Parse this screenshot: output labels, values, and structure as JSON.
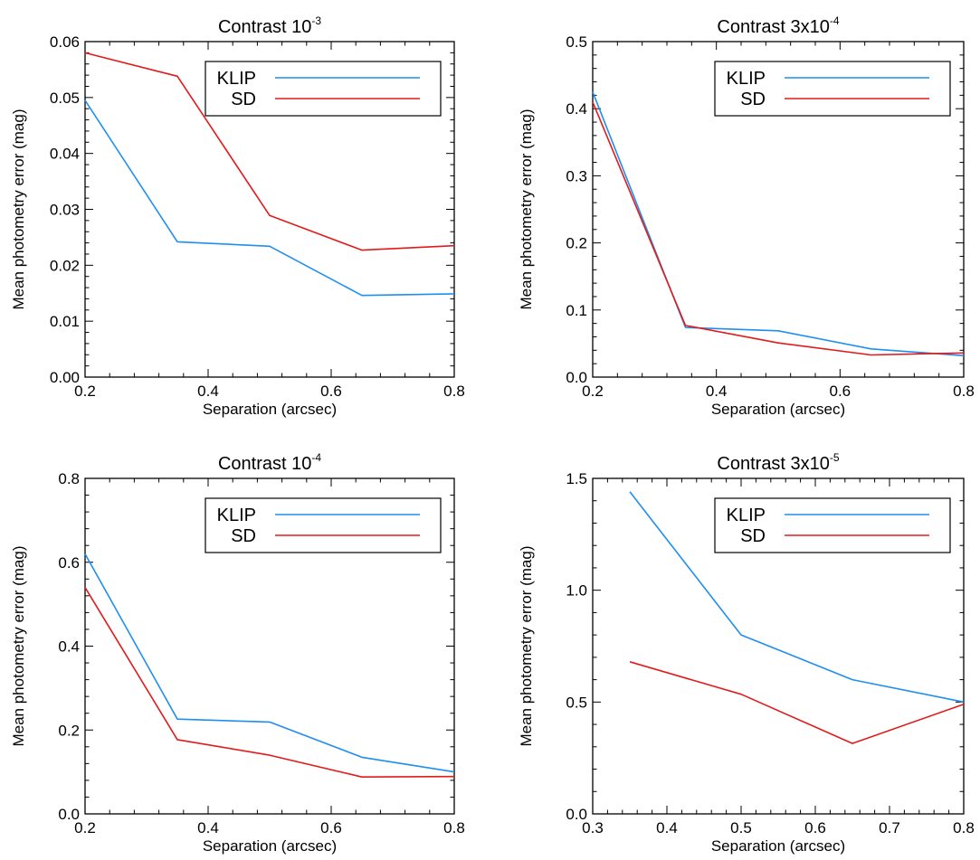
{
  "chart_data": [
    {
      "type": "line",
      "title": {
        "base": "Contrast 10",
        "exp": "-3"
      },
      "xlabel": "Separation (arcsec)",
      "ylabel": "Mean photometry error (mag)",
      "xlim": [
        0.2,
        0.8
      ],
      "ylim": [
        0.0,
        0.06
      ],
      "xticks": [
        "0.2",
        "0.4",
        "0.6",
        "0.8"
      ],
      "yticks": [
        "0.00",
        "0.01",
        "0.02",
        "0.03",
        "0.04",
        "0.05",
        "0.06"
      ],
      "legend": "top-right",
      "series": [
        {
          "name": "KLIP",
          "color": "#1e8ff0",
          "x": [
            0.2,
            0.35,
            0.5,
            0.65,
            0.8
          ],
          "y": [
            0.0495,
            0.0242,
            0.0234,
            0.0146,
            0.0149
          ]
        },
        {
          "name": "SD",
          "color": "#e21a1a",
          "x": [
            0.2,
            0.35,
            0.5,
            0.65,
            0.8
          ],
          "y": [
            0.058,
            0.0538,
            0.0289,
            0.0227,
            0.0235
          ]
        }
      ]
    },
    {
      "type": "line",
      "title": {
        "base": "Contrast 3x10",
        "exp": "-4"
      },
      "xlabel": "Separation (arcsec)",
      "ylabel": "Mean photometry error (mag)",
      "xlim": [
        0.2,
        0.8
      ],
      "ylim": [
        0.0,
        0.5
      ],
      "xticks": [
        "0.2",
        "0.4",
        "0.6",
        "0.8"
      ],
      "yticks": [
        "0.0",
        "0.1",
        "0.2",
        "0.3",
        "0.4",
        "0.5"
      ],
      "legend": "top-right",
      "series": [
        {
          "name": "KLIP",
          "color": "#1e8ff0",
          "x": [
            0.2,
            0.35,
            0.5,
            0.65,
            0.8
          ],
          "y": [
            0.425,
            0.074,
            0.069,
            0.042,
            0.032
          ]
        },
        {
          "name": "SD",
          "color": "#e21a1a",
          "x": [
            0.2,
            0.35,
            0.5,
            0.65,
            0.8
          ],
          "y": [
            0.41,
            0.077,
            0.051,
            0.033,
            0.036
          ]
        }
      ]
    },
    {
      "type": "line",
      "title": {
        "base": "Contrast 10",
        "exp": "-4"
      },
      "xlabel": "Separation (arcsec)",
      "ylabel": "Mean photometry error (mag)",
      "xlim": [
        0.2,
        0.8
      ],
      "ylim": [
        0.0,
        0.8
      ],
      "xticks": [
        "0.2",
        "0.4",
        "0.6",
        "0.8"
      ],
      "yticks": [
        "0.0",
        "0.2",
        "0.4",
        "0.6",
        "0.8"
      ],
      "legend": "top-right",
      "series": [
        {
          "name": "KLIP",
          "color": "#1e8ff0",
          "x": [
            0.2,
            0.35,
            0.5,
            0.65,
            0.8
          ],
          "y": [
            0.62,
            0.226,
            0.219,
            0.135,
            0.1
          ]
        },
        {
          "name": "SD",
          "color": "#e21a1a",
          "x": [
            0.2,
            0.35,
            0.5,
            0.65,
            0.8
          ],
          "y": [
            0.54,
            0.177,
            0.14,
            0.088,
            0.089
          ]
        }
      ]
    },
    {
      "type": "line",
      "title": {
        "base": "Contrast 3x10",
        "exp": "-5"
      },
      "xlabel": "Separation (arcsec)",
      "ylabel": "Mean photometry error (mag)",
      "xlim": [
        0.3,
        0.8
      ],
      "ylim": [
        0.0,
        1.5
      ],
      "xticks": [
        "0.3",
        "0.4",
        "0.5",
        "0.6",
        "0.7",
        "0.8"
      ],
      "yticks": [
        "0.0",
        "0.5",
        "1.0",
        "1.5"
      ],
      "legend": "top-right",
      "series": [
        {
          "name": "KLIP",
          "color": "#1e8ff0",
          "x": [
            0.35,
            0.5,
            0.65,
            0.8
          ],
          "y": [
            1.44,
            0.8,
            0.6,
            0.5
          ]
        },
        {
          "name": "SD",
          "color": "#e21a1a",
          "x": [
            0.35,
            0.5,
            0.65,
            0.8
          ],
          "y": [
            0.68,
            0.535,
            0.315,
            0.49
          ]
        }
      ]
    }
  ]
}
